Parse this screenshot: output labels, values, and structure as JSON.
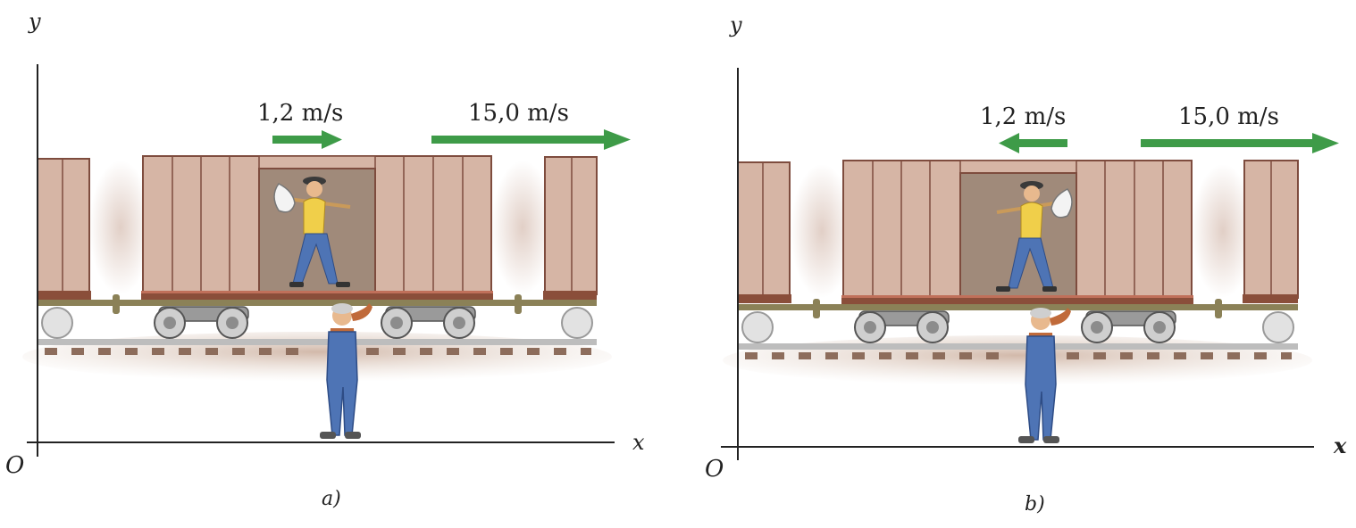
{
  "panels": [
    {
      "id": "a",
      "caption": "a)",
      "y_axis": "y",
      "x_axis": "x",
      "origin": "O",
      "walker_speed": "1,2 m/s",
      "walker_direction": "right",
      "train_speed": "15,0 m/s",
      "train_direction": "right"
    },
    {
      "id": "b",
      "caption": "b)",
      "y_axis": "y",
      "x_axis": "x",
      "origin": "O",
      "walker_speed": "1,2 m/s",
      "walker_direction": "left",
      "train_speed": "15,0 m/s",
      "train_direction": "right"
    }
  ],
  "colors": {
    "arrow": "#3e9b48",
    "car_body": "#d6b5a5",
    "car_outline": "#7e4c3e",
    "door_interior": "#a08a7a",
    "underframe": "#8a4e3a",
    "track": "#b9b9b9",
    "ground": "#d9c5b8",
    "worker_shirt": "#f0cf4a",
    "worker_overalls": "#4e74b5",
    "axes": "#222222"
  }
}
